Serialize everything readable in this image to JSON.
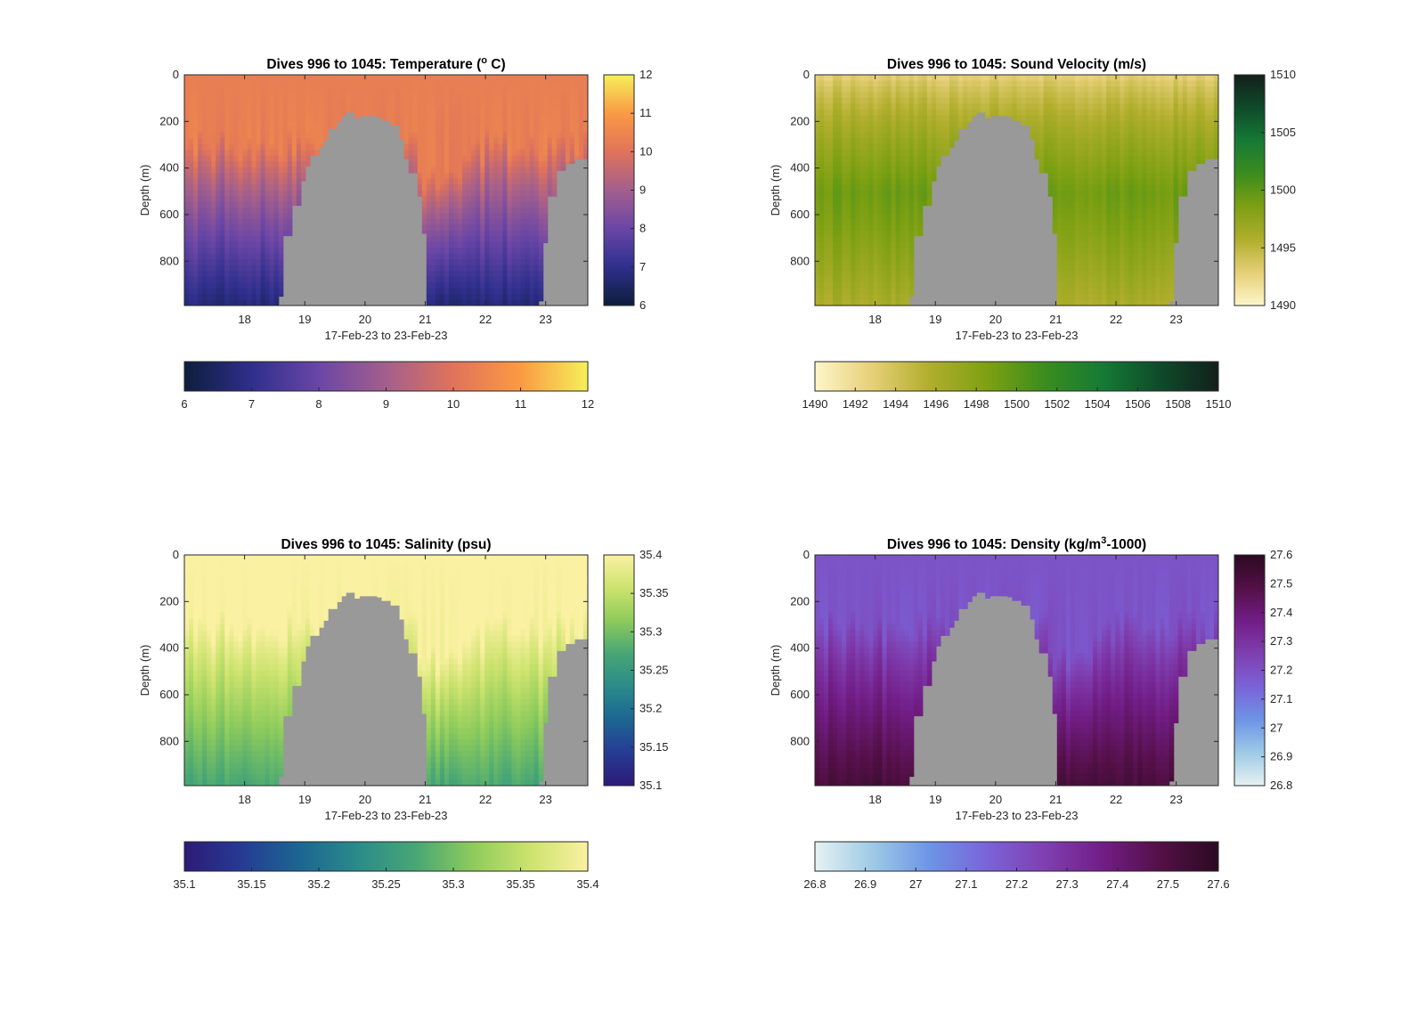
{
  "figure": {
    "background": "#ffffff"
  },
  "chart_data": [
    {
      "type": "heatmap",
      "variable": "temperature",
      "title": "Dives 996 to 1045: Temperature (",
      "title_sup": "o",
      "title_end": " C)",
      "xlabel": "17-Feb-23 to 23-Feb-23",
      "ylabel": "Depth (m)",
      "xlim": [
        17,
        23.7
      ],
      "ylim": [
        0,
        990
      ],
      "y_reversed": true,
      "x_ticks": [
        18,
        19,
        20,
        21,
        22,
        23
      ],
      "x_tick_labels": [
        "18",
        "19",
        "20",
        "21",
        "22",
        "23"
      ],
      "y_ticks": [
        0,
        200,
        400,
        600,
        800
      ],
      "y_tick_labels": [
        "0",
        "200",
        "400",
        "600",
        "800"
      ],
      "clim": [
        6,
        12
      ],
      "colorbar_ticks": [
        6,
        7,
        8,
        9,
        10,
        11,
        12
      ],
      "colorbar_tick_labels": [
        "6",
        "7",
        "8",
        "9",
        "10",
        "11",
        "12"
      ],
      "colormap": [
        "#0e1d3c",
        "#2f2f8c",
        "#6a46a6",
        "#a35f8c",
        "#e0735a",
        "#fa9a44",
        "#f5f05a"
      ],
      "surface_value": 10.3,
      "deep_value": 6.7,
      "no_data_color": "#999999",
      "seafloor_depth_m": [
        [
          17.0,
          990
        ],
        [
          18.55,
          990
        ],
        [
          18.6,
          950
        ],
        [
          18.65,
          690
        ],
        [
          18.8,
          560
        ],
        [
          18.95,
          455
        ],
        [
          19.0,
          390
        ],
        [
          19.1,
          345
        ],
        [
          19.2,
          310
        ],
        [
          19.3,
          280
        ],
        [
          19.4,
          230
        ],
        [
          19.5,
          200
        ],
        [
          19.6,
          175
        ],
        [
          19.65,
          160
        ],
        [
          19.8,
          185
        ],
        [
          19.9,
          175
        ],
        [
          20.2,
          180
        ],
        [
          20.3,
          195
        ],
        [
          20.45,
          215
        ],
        [
          20.55,
          275
        ],
        [
          20.65,
          360
        ],
        [
          20.75,
          420
        ],
        [
          20.85,
          520
        ],
        [
          20.95,
          680
        ],
        [
          21.0,
          990
        ],
        [
          22.85,
          990
        ],
        [
          22.9,
          970
        ],
        [
          22.95,
          720
        ],
        [
          23.05,
          520
        ],
        [
          23.15,
          410
        ],
        [
          23.3,
          380
        ],
        [
          23.5,
          360
        ],
        [
          23.7,
          320
        ]
      ]
    },
    {
      "type": "heatmap",
      "variable": "sound_velocity",
      "title": "Dives 996 to 1045: Sound Velocity (m/s)",
      "title_sup": "",
      "title_end": "",
      "xlabel": "17-Feb-23 to 23-Feb-23",
      "ylabel": "Depth (m)",
      "xlim": [
        17,
        23.7
      ],
      "ylim": [
        0,
        990
      ],
      "y_reversed": true,
      "x_ticks": [
        18,
        19,
        20,
        21,
        22,
        23
      ],
      "x_tick_labels": [
        "18",
        "19",
        "20",
        "21",
        "22",
        "23"
      ],
      "y_ticks": [
        0,
        200,
        400,
        600,
        800
      ],
      "y_tick_labels": [
        "0",
        "200",
        "400",
        "600",
        "800"
      ],
      "clim": [
        1490,
        1510
      ],
      "colorbar_ticks": [
        1490,
        1492,
        1494,
        1496,
        1498,
        1500,
        1502,
        1504,
        1506,
        1508,
        1510
      ],
      "colorbar_tick_labels": [
        "1490",
        "1492",
        "1494",
        "1496",
        "1498",
        "1500",
        "1502",
        "1504",
        "1506",
        "1508",
        "1510"
      ],
      "side_colorbar_ticks": [
        1490,
        1495,
        1500,
        1505,
        1510
      ],
      "side_colorbar_tick_labels": [
        "1490",
        "1495",
        "1500",
        "1505",
        "1510"
      ],
      "colormap": [
        "#fdf6c9",
        "#e6cf77",
        "#b0ae2c",
        "#7da012",
        "#3a8c1e",
        "#157a35",
        "#0f4a2a",
        "#12201a"
      ],
      "surface_value": 1492.6,
      "mid_value": 1499.2,
      "deep_value": 1496.0,
      "no_data_color": "#999999",
      "seafloor_depth_m": [
        [
          17.0,
          990
        ],
        [
          18.55,
          990
        ],
        [
          18.6,
          950
        ],
        [
          18.65,
          690
        ],
        [
          18.8,
          560
        ],
        [
          18.95,
          455
        ],
        [
          19.0,
          390
        ],
        [
          19.1,
          345
        ],
        [
          19.2,
          310
        ],
        [
          19.3,
          280
        ],
        [
          19.4,
          230
        ],
        [
          19.5,
          200
        ],
        [
          19.6,
          175
        ],
        [
          19.65,
          160
        ],
        [
          19.8,
          185
        ],
        [
          19.9,
          175
        ],
        [
          20.2,
          180
        ],
        [
          20.3,
          195
        ],
        [
          20.45,
          215
        ],
        [
          20.55,
          275
        ],
        [
          20.65,
          360
        ],
        [
          20.75,
          420
        ],
        [
          20.85,
          520
        ],
        [
          20.95,
          680
        ],
        [
          21.0,
          990
        ],
        [
          22.85,
          990
        ],
        [
          22.9,
          970
        ],
        [
          22.95,
          720
        ],
        [
          23.05,
          520
        ],
        [
          23.15,
          410
        ],
        [
          23.3,
          380
        ],
        [
          23.5,
          360
        ],
        [
          23.7,
          320
        ]
      ]
    },
    {
      "type": "heatmap",
      "variable": "salinity",
      "title": "Dives 996 to 1045: Salinity (psu)",
      "title_sup": "",
      "title_end": "",
      "xlabel": "17-Feb-23 to 23-Feb-23",
      "ylabel": "Depth (m)",
      "xlim": [
        17,
        23.7
      ],
      "ylim": [
        0,
        990
      ],
      "y_reversed": true,
      "x_ticks": [
        18,
        19,
        20,
        21,
        22,
        23
      ],
      "x_tick_labels": [
        "18",
        "19",
        "20",
        "21",
        "22",
        "23"
      ],
      "y_ticks": [
        0,
        200,
        400,
        600,
        800
      ],
      "y_tick_labels": [
        "0",
        "200",
        "400",
        "600",
        "800"
      ],
      "clim": [
        35.1,
        35.4
      ],
      "colorbar_ticks": [
        35.1,
        35.15,
        35.2,
        35.25,
        35.3,
        35.35,
        35.4
      ],
      "colorbar_tick_labels": [
        "35.1",
        "35.15",
        "35.2",
        "35.25",
        "35.3",
        "35.35",
        "35.4"
      ],
      "colormap": [
        "#2c1b76",
        "#263b94",
        "#1c6692",
        "#2a8b8a",
        "#47a675",
        "#8dcb5c",
        "#cde36e",
        "#faf1a2"
      ],
      "surface_value": 35.4,
      "deep_value": 35.27,
      "no_data_color": "#999999",
      "seafloor_depth_m": [
        [
          17.0,
          990
        ],
        [
          18.55,
          990
        ],
        [
          18.6,
          950
        ],
        [
          18.65,
          690
        ],
        [
          18.8,
          560
        ],
        [
          18.95,
          455
        ],
        [
          19.0,
          390
        ],
        [
          19.1,
          345
        ],
        [
          19.2,
          310
        ],
        [
          19.3,
          280
        ],
        [
          19.4,
          230
        ],
        [
          19.5,
          200
        ],
        [
          19.6,
          175
        ],
        [
          19.65,
          160
        ],
        [
          19.8,
          185
        ],
        [
          19.9,
          175
        ],
        [
          20.2,
          180
        ],
        [
          20.3,
          195
        ],
        [
          20.45,
          215
        ],
        [
          20.55,
          275
        ],
        [
          20.65,
          360
        ],
        [
          20.75,
          420
        ],
        [
          20.85,
          520
        ],
        [
          20.95,
          680
        ],
        [
          21.0,
          990
        ],
        [
          22.85,
          990
        ],
        [
          22.9,
          970
        ],
        [
          22.95,
          720
        ],
        [
          23.05,
          520
        ],
        [
          23.15,
          410
        ],
        [
          23.3,
          380
        ],
        [
          23.5,
          360
        ],
        [
          23.7,
          320
        ]
      ]
    },
    {
      "type": "heatmap",
      "variable": "density",
      "title": "Dives 996 to 1045: Density (kg/m",
      "title_sup": "3",
      "title_end": "-1000)",
      "xlabel": "17-Feb-23 to 23-Feb-23",
      "ylabel": "Depth (m)",
      "xlim": [
        17,
        23.7
      ],
      "ylim": [
        0,
        990
      ],
      "y_reversed": true,
      "x_ticks": [
        18,
        19,
        20,
        21,
        22,
        23
      ],
      "x_tick_labels": [
        "18",
        "19",
        "20",
        "21",
        "22",
        "23"
      ],
      "y_ticks": [
        0,
        200,
        400,
        600,
        800
      ],
      "y_tick_labels": [
        "0",
        "200",
        "400",
        "600",
        "800"
      ],
      "clim": [
        26.8,
        27.6
      ],
      "colorbar_ticks": [
        26.8,
        26.9,
        27,
        27.1,
        27.2,
        27.3,
        27.4,
        27.5,
        27.6
      ],
      "colorbar_tick_labels": [
        "26.8",
        "26.9",
        "27",
        "27.1",
        "27.2",
        "27.3",
        "27.4",
        "27.5",
        "27.6"
      ],
      "colormap": [
        "#e6f2f2",
        "#9ecae6",
        "#6d94e6",
        "#7a63d8",
        "#7f3fb0",
        "#721d86",
        "#531046",
        "#2b0a22"
      ],
      "surface_value": 27.19,
      "deep_value": 27.52,
      "no_data_color": "#999999",
      "seafloor_depth_m": [
        [
          17.0,
          990
        ],
        [
          18.55,
          990
        ],
        [
          18.6,
          950
        ],
        [
          18.65,
          690
        ],
        [
          18.8,
          560
        ],
        [
          18.95,
          455
        ],
        [
          19.0,
          390
        ],
        [
          19.1,
          345
        ],
        [
          19.2,
          310
        ],
        [
          19.3,
          280
        ],
        [
          19.4,
          230
        ],
        [
          19.5,
          200
        ],
        [
          19.6,
          175
        ],
        [
          19.65,
          160
        ],
        [
          19.8,
          185
        ],
        [
          19.9,
          175
        ],
        [
          20.2,
          180
        ],
        [
          20.3,
          195
        ],
        [
          20.45,
          215
        ],
        [
          20.55,
          275
        ],
        [
          20.65,
          360
        ],
        [
          20.75,
          420
        ],
        [
          20.85,
          520
        ],
        [
          20.95,
          680
        ],
        [
          21.0,
          990
        ],
        [
          22.85,
          990
        ],
        [
          22.9,
          970
        ],
        [
          22.95,
          720
        ],
        [
          23.05,
          520
        ],
        [
          23.15,
          410
        ],
        [
          23.3,
          380
        ],
        [
          23.5,
          360
        ],
        [
          23.7,
          320
        ]
      ]
    }
  ]
}
